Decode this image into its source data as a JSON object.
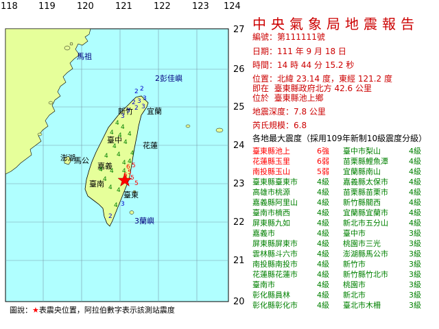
{
  "report": {
    "title": "中央氣象局地震報告",
    "lines": [
      {
        "label": "編號：",
        "value": "第111111號"
      },
      {
        "label": "日期：",
        "value": "111 年 9 月 18 日"
      },
      {
        "label": "時間：",
        "value": "14 時 44 分 15.2 秒"
      },
      {
        "label": "位置：",
        "value": "北緯 23.14 度，東經 121.2 度"
      },
      {
        "label": "即在",
        "value": "臺東縣政府北方 42.6 公里"
      },
      {
        "label": "位於",
        "value": "臺東縣池上鄉"
      },
      {
        "label": "地震深度：",
        "value": "7.8 公里"
      },
      {
        "label": "芮氏規模：",
        "value": "6.8"
      }
    ],
    "intensity_caption": "各地最大震度（採用109年新制10級震度分級）",
    "intensities": [
      {
        "left": "臺東縣池上",
        "left_level": "6強",
        "right": "臺中市梨山",
        "right_level": "4級",
        "color": "#ff0000"
      },
      {
        "left": "花蓮縣玉里",
        "left_level": "6弱",
        "right": "苗栗縣鯉魚潭",
        "right_level": "4級",
        "color": "#ff0000"
      },
      {
        "left": "南投縣玉山",
        "left_level": "5弱",
        "right": "宜蘭縣南山",
        "right_level": "4級",
        "color": "#ff0000"
      },
      {
        "left": "臺東縣臺東市",
        "left_level": "4級",
        "right": "嘉義縣太保市",
        "right_level": "4級",
        "color": "#008000"
      },
      {
        "left": "高雄市桃源",
        "left_level": "4級",
        "right": "苗栗縣苗栗市",
        "right_level": "4級",
        "color": "#008000"
      },
      {
        "left": "嘉義縣阿里山",
        "left_level": "4級",
        "right": "新竹縣關西",
        "right_level": "4級",
        "color": "#008000"
      },
      {
        "left": "臺南市楠西",
        "left_level": "4級",
        "right": "宜蘭縣宜蘭市",
        "right_level": "4級",
        "color": "#008000"
      },
      {
        "left": "屏東縣九如",
        "left_level": "4級",
        "right": "新北市五分山",
        "right_level": "4級",
        "color": "#008000"
      },
      {
        "left": "嘉義市",
        "left_level": "4級",
        "right": "臺中市",
        "right_level": "3級",
        "color": "#008000"
      },
      {
        "left": "屏東縣屏東市",
        "left_level": "4級",
        "right": "桃園市三光",
        "right_level": "3級",
        "color": "#008000"
      },
      {
        "left": "雲林縣斗六市",
        "left_level": "4級",
        "right": "澎湖縣馬公市",
        "right_level": "3級",
        "color": "#008000"
      },
      {
        "left": "南投縣南投市",
        "left_level": "4級",
        "right": "新竹市",
        "right_level": "3級",
        "color": "#008000"
      },
      {
        "left": "花蓮縣花蓮市",
        "left_level": "4級",
        "right": "新竹縣竹北市",
        "right_level": "3級",
        "color": "#008000"
      },
      {
        "left": "臺南市",
        "left_level": "4級",
        "right": "桃園市",
        "right_level": "3級",
        "color": "#008000"
      },
      {
        "left": "彰化縣員林",
        "left_level": "4級",
        "right": "新北市",
        "right_level": "3級",
        "color": "#008000"
      },
      {
        "left": "彰化縣彰化市",
        "left_level": "4級",
        "right": "臺北市木柵",
        "right_level": "3級",
        "color": "#008000"
      }
    ]
  },
  "map": {
    "longitudes": [
      "118",
      "119",
      "120",
      "121",
      "122",
      "123",
      "124"
    ],
    "latitudes": [
      "27",
      "26",
      "25",
      "24",
      "23",
      "22",
      "21",
      "20"
    ],
    "ocean_color": "#b0ffff",
    "land_color": "#e6ff9a",
    "labels": [
      {
        "text": "馬祖",
        "color": "#000080"
      },
      {
        "text": "2彭佳嶼",
        "color": "#000080"
      },
      {
        "text": "新竹",
        "color": "#000000"
      },
      {
        "text": "宜蘭",
        "color": "#000000"
      },
      {
        "text": "臺中",
        "color": "#000000"
      },
      {
        "text": "花蓮",
        "color": "#000000"
      },
      {
        "text": "澎湖",
        "color": "#000000"
      },
      {
        "text": "馬公",
        "color": "#000000"
      },
      {
        "text": "嘉義",
        "color": "#000000"
      },
      {
        "text": "臺南",
        "color": "#000000"
      },
      {
        "text": "臺東",
        "color": "#000000"
      },
      {
        "text": "3蘭嶼",
        "color": "#000080"
      }
    ],
    "station_numbers": [
      "2",
      "2",
      "3",
      "3",
      "2",
      "2",
      "3",
      "3",
      "3",
      "4",
      "4",
      "4",
      "4",
      "4",
      "4",
      "4",
      "4",
      "4",
      "4",
      "4",
      "4",
      "4",
      "4",
      "4",
      "5",
      "5",
      "5",
      "5",
      "6",
      "6",
      "4",
      "4",
      "4",
      "3",
      "4",
      "2"
    ]
  },
  "legend": {
    "prefix": "圖說：",
    "star": "★",
    "text": "表震央位置，阿拉伯數字表示該測站震度"
  }
}
